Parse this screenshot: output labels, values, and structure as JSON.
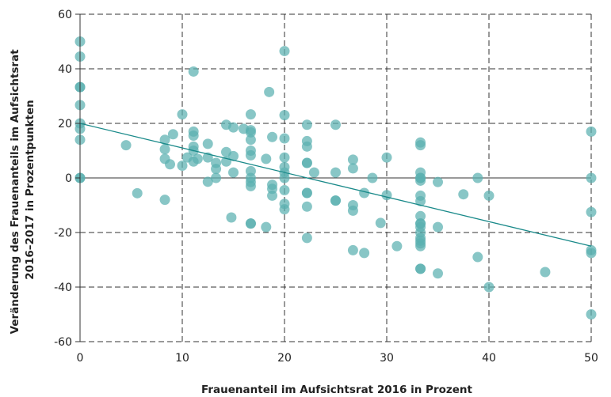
{
  "chart_data": {
    "type": "scatter",
    "xlabel": "Frauenanteil im Aufsichtsrat 2016 in Prozent",
    "ylabel_lines": [
      "Veränderung des Frauenanteils im Aufsichtsrat",
      "2016–2017 in Prozentpunkten"
    ],
    "xlim": [
      0,
      50
    ],
    "ylim": [
      -60,
      60
    ],
    "x_ticks": [
      0,
      10,
      20,
      30,
      40,
      50
    ],
    "y_ticks": [
      -60,
      -40,
      -20,
      0,
      20,
      40,
      60
    ],
    "x_tick_labels": [
      "0",
      "10",
      "20",
      "30",
      "40",
      "50"
    ],
    "y_tick_labels": [
      "-60",
      "-40",
      "-20",
      "0",
      "20",
      "40",
      "60"
    ],
    "grid": true,
    "marker_color": "#5ab0b0",
    "marker_edge_color": "#2e8f8f",
    "trendline_color": "#1a8a8a",
    "trendline": {
      "x": [
        0,
        50
      ],
      "y": [
        20,
        -25
      ]
    },
    "points": [
      [
        0,
        50
      ],
      [
        0,
        44.5
      ],
      [
        0,
        33.3
      ],
      [
        0,
        33.3
      ],
      [
        0,
        26.7
      ],
      [
        0,
        20
      ],
      [
        0,
        18
      ],
      [
        0,
        14
      ],
      [
        0,
        0
      ],
      [
        0,
        0
      ],
      [
        4.5,
        12
      ],
      [
        5.6,
        -5.6
      ],
      [
        8.3,
        14
      ],
      [
        8.3,
        10.5
      ],
      [
        8.3,
        7
      ],
      [
        8.3,
        -8
      ],
      [
        8.8,
        5
      ],
      [
        9.1,
        16
      ],
      [
        10,
        23.3
      ],
      [
        10,
        4.5
      ],
      [
        10.5,
        7.5
      ],
      [
        11.1,
        39
      ],
      [
        11.1,
        17
      ],
      [
        11.1,
        15.5
      ],
      [
        11.1,
        11.5
      ],
      [
        11.1,
        10
      ],
      [
        11.1,
        6
      ],
      [
        11.5,
        7
      ],
      [
        12.5,
        12.5
      ],
      [
        12.5,
        -1.4
      ],
      [
        12.5,
        7.5
      ],
      [
        13.3,
        5.5
      ],
      [
        13.3,
        3.3
      ],
      [
        13.3,
        0
      ],
      [
        14.3,
        19.5
      ],
      [
        14.3,
        9.5
      ],
      [
        14.3,
        6
      ],
      [
        14.8,
        -14.5
      ],
      [
        15,
        18.5
      ],
      [
        15,
        8
      ],
      [
        15,
        2
      ],
      [
        16,
        18
      ],
      [
        16.7,
        23.3
      ],
      [
        16.7,
        17.5
      ],
      [
        16.7,
        16.7
      ],
      [
        16.7,
        14
      ],
      [
        16.7,
        10
      ],
      [
        16.7,
        8.3
      ],
      [
        16.7,
        2.5
      ],
      [
        16.7,
        0
      ],
      [
        16.7,
        -1.5
      ],
      [
        16.7,
        -3
      ],
      [
        16.7,
        -16.7
      ],
      [
        16.7,
        -16.7
      ],
      [
        18.2,
        -18
      ],
      [
        18.2,
        7
      ],
      [
        18.5,
        31.5
      ],
      [
        18.8,
        15
      ],
      [
        18.8,
        -2.5
      ],
      [
        18.8,
        -4
      ],
      [
        18.8,
        -6.5
      ],
      [
        20,
        46.5
      ],
      [
        20,
        23
      ],
      [
        20,
        14.5
      ],
      [
        20,
        7.5
      ],
      [
        20,
        4
      ],
      [
        20,
        2
      ],
      [
        20,
        0
      ],
      [
        20,
        -4.5
      ],
      [
        20,
        -9.5
      ],
      [
        20,
        -11.5
      ],
      [
        22.2,
        19.5
      ],
      [
        22.2,
        13.5
      ],
      [
        22.2,
        11.5
      ],
      [
        22.2,
        5.5
      ],
      [
        22.2,
        5.5
      ],
      [
        22.2,
        -5.5
      ],
      [
        22.2,
        -5.5
      ],
      [
        22.2,
        -10.5
      ],
      [
        22.2,
        -22
      ],
      [
        22.9,
        2
      ],
      [
        25,
        19.5
      ],
      [
        25,
        2
      ],
      [
        25,
        -8.3
      ],
      [
        25,
        -8.3
      ],
      [
        26.7,
        6.7
      ],
      [
        26.7,
        3.5
      ],
      [
        26.7,
        -10
      ],
      [
        26.7,
        -12
      ],
      [
        26.7,
        -26.5
      ],
      [
        27.8,
        -27.5
      ],
      [
        27.8,
        -5.5
      ],
      [
        28.6,
        0
      ],
      [
        29.4,
        -16.5
      ],
      [
        30,
        7.5
      ],
      [
        30,
        -6.3
      ],
      [
        31,
        -25
      ],
      [
        33.3,
        13
      ],
      [
        33.3,
        12
      ],
      [
        33.3,
        2
      ],
      [
        33.3,
        0
      ],
      [
        33.3,
        0
      ],
      [
        33.3,
        -1
      ],
      [
        33.3,
        -6.5
      ],
      [
        33.3,
        -8.5
      ],
      [
        33.3,
        -14
      ],
      [
        33.3,
        -16.7
      ],
      [
        33.3,
        -16.7
      ],
      [
        33.3,
        -18
      ],
      [
        33.3,
        -20
      ],
      [
        33.3,
        -22
      ],
      [
        33.3,
        -23
      ],
      [
        33.3,
        -24
      ],
      [
        33.3,
        -25
      ],
      [
        33.3,
        -33.3
      ],
      [
        33.3,
        -33.3
      ],
      [
        35,
        -1.5
      ],
      [
        35,
        -18
      ],
      [
        35,
        -35
      ],
      [
        37.5,
        -6
      ],
      [
        38.9,
        0
      ],
      [
        38.9,
        -29
      ],
      [
        40,
        -6.5
      ],
      [
        40,
        -40
      ],
      [
        45.5,
        -34.5
      ],
      [
        50,
        17
      ],
      [
        50,
        0
      ],
      [
        50,
        -12.5
      ],
      [
        50,
        -26.5
      ],
      [
        50,
        -27.5
      ],
      [
        50,
        -50
      ]
    ]
  }
}
